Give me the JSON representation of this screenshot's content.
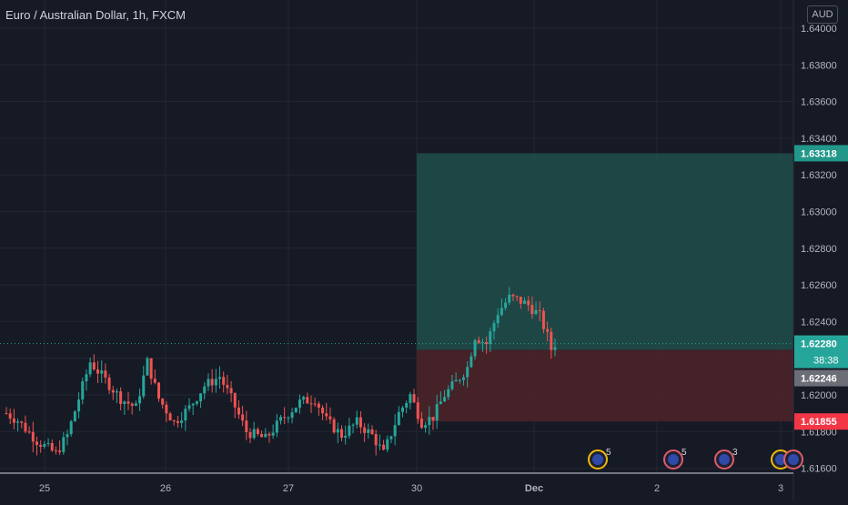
{
  "chart_title": "Euro / Australian Dollar, 1h, FXCM",
  "currency_button": "AUD",
  "colors": {
    "background": "#161a25",
    "grid": "#232734",
    "up": "#26a69a",
    "down": "#ef5350",
    "target_zone": "#1f4f4b",
    "stop_zone": "#4d2329",
    "target_label": "#22978a",
    "stop_label": "#f23645",
    "countdown_label": "#26a69a",
    "entry_label": "#6b6e77"
  },
  "chart_data": {
    "type": "candlestick",
    "symbol": "Euro / Australian Dollar",
    "interval": "1h",
    "exchange": "FXCM",
    "y_ticks": [
      "1.64000",
      "1.63800",
      "1.63600",
      "1.63400",
      "1.63200",
      "1.63000",
      "1.62800",
      "1.62600",
      "1.62400",
      "1.62200",
      "1.62000",
      "1.61800",
      "1.61600"
    ],
    "x_ticks": [
      "25",
      "26",
      "27",
      "30",
      "Dec",
      "2",
      "3"
    ],
    "ylim": [
      1.6143,
      1.6404
    ],
    "grid": true,
    "price_labels": {
      "current": "1.62280",
      "countdown": "38:38",
      "entry": "1.62246",
      "target": "1.63318",
      "stop": "1.61855"
    },
    "position": {
      "type": "long",
      "entry": 1.62246,
      "target": 1.63318,
      "stop": 1.61855
    },
    "events": [
      {
        "flag": "EU",
        "count": "5"
      },
      {
        "flag": "AU",
        "count": "5"
      },
      {
        "flag": "AU",
        "count": "3"
      },
      {
        "flag": "EU"
      },
      {
        "flag": "AU"
      }
    ]
  }
}
